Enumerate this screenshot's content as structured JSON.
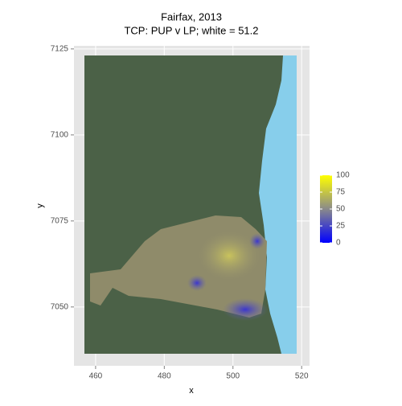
{
  "chart_data": {
    "type": "raster",
    "title": "Fairfax, 2013",
    "subtitle": "TCP: PUP v LP; white = 51.2",
    "x_label": "x",
    "y_label": "y",
    "xlim": [
      453.7,
      522.3
    ],
    "xticks": [
      460,
      480,
      500,
      520
    ],
    "ylim": [
      7032.9,
      7125.9
    ],
    "yticks": [
      7050,
      7075,
      7100,
      7125
    ],
    "grid": true,
    "colorbar": {
      "lim": [
        0,
        100
      ],
      "ticks": [
        0,
        25,
        50,
        75,
        100
      ],
      "colors": [
        "#0000ff",
        "#8a8a8a",
        "#ffff00"
      ]
    }
  }
}
